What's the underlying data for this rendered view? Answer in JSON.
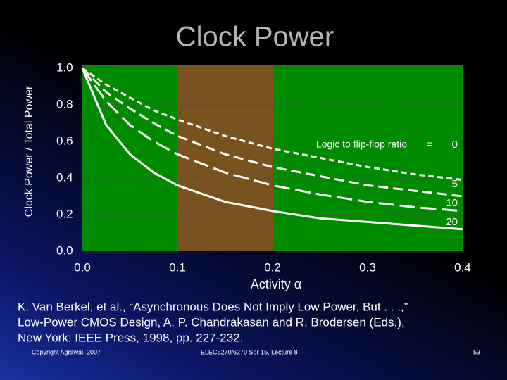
{
  "header": {
    "title": "Clock Power"
  },
  "chart_data": {
    "type": "line",
    "y_label": "Clock Power / Total Power",
    "x_label": "Activity  α",
    "legend_title": "Logic to flip-flop ratio",
    "legend_sep": "=",
    "x": [
      0,
      0.025,
      0.05,
      0.075,
      0.1,
      0.15,
      0.2,
      0.25,
      0.3,
      0.35,
      0.4
    ],
    "series": [
      {
        "name": "0",
        "color": "#ffffff",
        "style": "short-dash",
        "values": [
          1,
          0.91,
          0.84,
          0.77,
          0.72,
          0.63,
          0.56,
          0.51,
          0.46,
          0.42,
          0.39
        ]
      },
      {
        "name": "5",
        "color": "#ffffff",
        "style": "dash",
        "values": [
          1,
          0.87,
          0.78,
          0.7,
          0.63,
          0.53,
          0.46,
          0.41,
          0.36,
          0.33,
          0.3
        ]
      },
      {
        "name": "10",
        "color": "#ffffff",
        "style": "long-dash",
        "values": [
          1,
          0.82,
          0.69,
          0.6,
          0.53,
          0.43,
          0.36,
          0.31,
          0.27,
          0.24,
          0.22
        ]
      },
      {
        "name": "20",
        "color": "#ffffff",
        "style": "solid",
        "values": [
          1,
          0.69,
          0.53,
          0.43,
          0.36,
          0.27,
          0.22,
          0.18,
          0.16,
          0.14,
          0.12
        ]
      }
    ],
    "shaded_range": [
      0.1,
      0.2
    ],
    "shaded_color": "#7a5220",
    "plot_color": "#008a00",
    "xlim": [
      0,
      0.4
    ],
    "ylim": [
      0,
      1
    ],
    "xticks": [
      {
        "value": 0,
        "label": "0.0"
      },
      0.1,
      0.2,
      0.3,
      0.4
    ],
    "yticks": [
      {
        "value": 0,
        "label": "0.0"
      },
      0.2,
      0.4,
      0.6,
      0.8,
      {
        "value": 1,
        "label": "1.0"
      }
    ],
    "grid": true
  },
  "citation": [
    "K. Van Berkel, et al., “Asynchronous Does Not Imply Low Power, But . . .,”",
    "Low-Power CMOS Design, A. P. Chandrakasan and R. Brodersen (Eds.),",
    "New York: IEEE Press, 1998, pp. 227-232."
  ],
  "footer": {
    "left": "Copyright Agrawal, 2007",
    "center": "ELEC5270/6270 Spr 15, Lecture 8",
    "page": "53"
  }
}
